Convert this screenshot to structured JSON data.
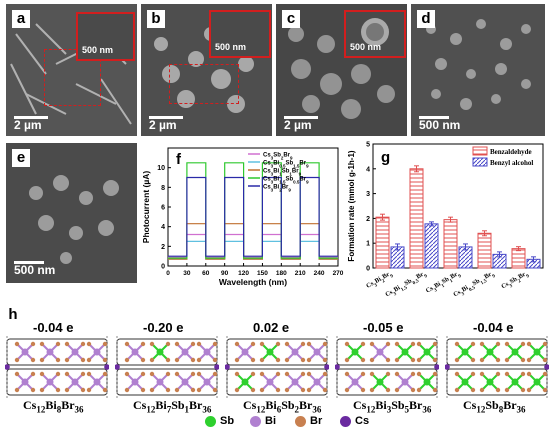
{
  "panels": {
    "a": {
      "label": "a",
      "scale": "2 µm",
      "inset_scale": "500 nm"
    },
    "b": {
      "label": "b",
      "scale": "2 µm",
      "inset_scale": "500 nm"
    },
    "c": {
      "label": "c",
      "scale": "2 µm",
      "inset_scale": "500 nm"
    },
    "d": {
      "label": "d",
      "scale": "500 nm"
    },
    "e": {
      "label": "e",
      "scale": "500 nm"
    },
    "f": {
      "label": "f"
    },
    "g": {
      "label": "g"
    },
    "h": {
      "label": "h"
    }
  },
  "chart_data": [
    {
      "type": "line",
      "panel": "f",
      "xlabel": "Wavelength (nm)",
      "ylabel": "Photocurrent (µA)",
      "xlim": [
        0,
        270
      ],
      "ylim": [
        0,
        12
      ],
      "xticks": [
        0,
        30,
        60,
        90,
        120,
        150,
        180,
        210,
        240,
        270
      ],
      "yticks": [
        0,
        2,
        4,
        6,
        8,
        10
      ],
      "legend_position": "top-right",
      "series": [
        {
          "name": "Cs3Sb2Br9",
          "color": "#d070d0",
          "on": 3.2,
          "off": 0.9
        },
        {
          "name": "Cs3Bi0.5Sb1.5Br9",
          "color": "#60c0e0",
          "on": 2.5,
          "off": 0.7
        },
        {
          "name": "Cs3Bi1Sb1Br9",
          "color": "#c07030",
          "on": 4.3,
          "off": 0.7
        },
        {
          "name": "Cs3Bi1.5Sb0.5Br9",
          "color": "#2ec82e",
          "on": 10.5,
          "off": 0.8
        },
        {
          "name": "Cs3Bi2Br9",
          "color": "#2a2aa8",
          "on": 9.0,
          "off": 1.0
        }
      ],
      "on_intervals": [
        [
          30,
          60
        ],
        [
          90,
          120
        ],
        [
          150,
          180
        ],
        [
          210,
          240
        ]
      ]
    },
    {
      "type": "bar",
      "panel": "g",
      "ylabel": "Formation rate (mmol g-1h-1)",
      "ylim": [
        0,
        5
      ],
      "yticks": [
        0,
        1,
        2,
        3,
        4,
        5
      ],
      "categories": [
        "Cs3Bi2Br9",
        "Cs3Bi1.5Sb0.5Br9",
        "Cs3Bi1Sb1Br9",
        "Cs3Bi0.5Sb1.5Br9",
        "Cs3Sb2Br9"
      ],
      "legend_position": "top-right",
      "series": [
        {
          "name": "Benzaldehyde",
          "color": "#e05050",
          "values": [
            2.05,
            4.0,
            1.95,
            1.4,
            0.78
          ],
          "errors": [
            0.12,
            0.12,
            0.1,
            0.1,
            0.08
          ]
        },
        {
          "name": "Benzyl alcohol",
          "color": "#4848c8",
          "values": [
            0.85,
            1.78,
            0.85,
            0.55,
            0.35
          ],
          "errors": [
            0.12,
            0.08,
            0.12,
            0.1,
            0.1
          ]
        }
      ]
    }
  ],
  "structures": [
    {
      "charge": "-0.04 e",
      "name_parts": [
        "Cs",
        "12",
        "Bi",
        "8",
        "Br",
        "36"
      ]
    },
    {
      "charge": "-0.20 e",
      "name_parts": [
        "Cs",
        "12",
        "Bi",
        "7",
        "Sb",
        "1",
        "Br",
        "36"
      ]
    },
    {
      "charge": "0.02 e",
      "name_parts": [
        "Cs",
        "12",
        "Bi",
        "6",
        "Sb",
        "2",
        "Br",
        "36"
      ]
    },
    {
      "charge": "-0.05 e",
      "name_parts": [
        "Cs",
        "12",
        "Bi",
        "3",
        "Sb",
        "5",
        "Br",
        "36"
      ]
    },
    {
      "charge": "-0.04 e",
      "name_parts": [
        "Cs",
        "12",
        "Sb",
        "8",
        "Br",
        "36"
      ]
    }
  ],
  "atom_legend": [
    {
      "label": "Sb",
      "color": "#2ed02e"
    },
    {
      "label": "Bi",
      "color": "#b080d0"
    },
    {
      "label": "Br",
      "color": "#c88050"
    },
    {
      "label": "Cs",
      "color": "#6a2aa0"
    }
  ]
}
